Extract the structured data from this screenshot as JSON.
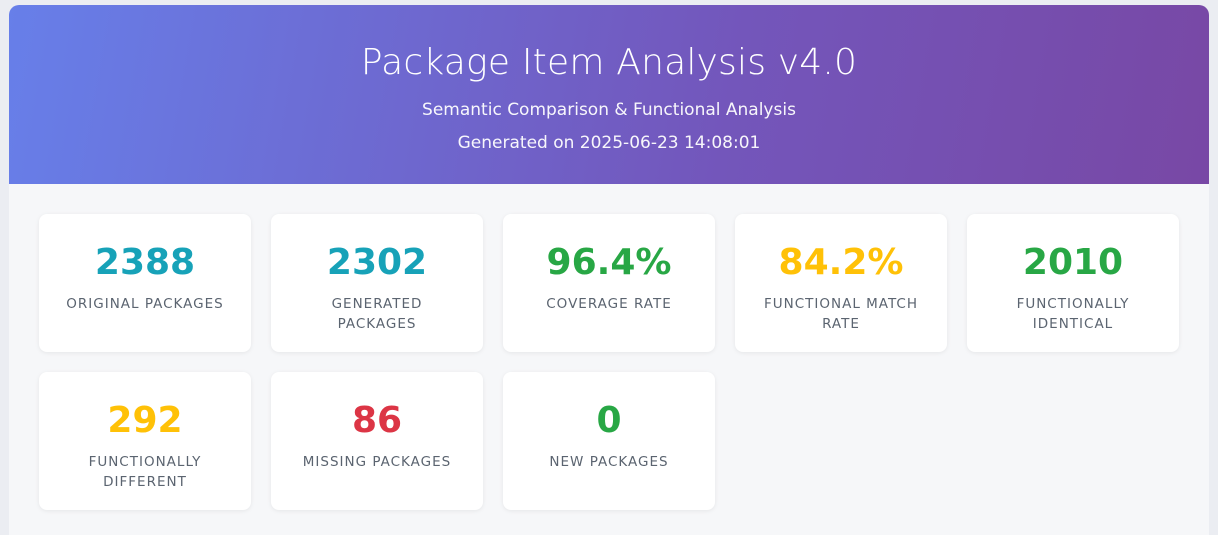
{
  "header": {
    "title": "Package Item Analysis v4.0",
    "subtitle": "Semantic Comparison & Functional Analysis",
    "generated": "Generated on 2025-06-23 14:08:01"
  },
  "colors": {
    "teal": "#17a2b8",
    "green": "#28a745",
    "yellow": "#ffc107",
    "red": "#dc3545"
  },
  "stats": [
    {
      "value": "2388",
      "label": "ORIGINAL PACKAGES",
      "color": "#17a2b8"
    },
    {
      "value": "2302",
      "label": "GENERATED PACKAGES",
      "color": "#17a2b8"
    },
    {
      "value": "96.4%",
      "label": "COVERAGE RATE",
      "color": "#28a745"
    },
    {
      "value": "84.2%",
      "label": "FUNCTIONAL MATCH RATE",
      "color": "#ffc107"
    },
    {
      "value": "2010",
      "label": "FUNCTIONALLY IDENTICAL",
      "color": "#28a745"
    },
    {
      "value": "292",
      "label": "FUNCTIONALLY DIFFERENT",
      "color": "#ffc107"
    },
    {
      "value": "86",
      "label": "MISSING PACKAGES",
      "color": "#dc3545"
    },
    {
      "value": "0",
      "label": "NEW PACKAGES",
      "color": "#28a745"
    }
  ]
}
